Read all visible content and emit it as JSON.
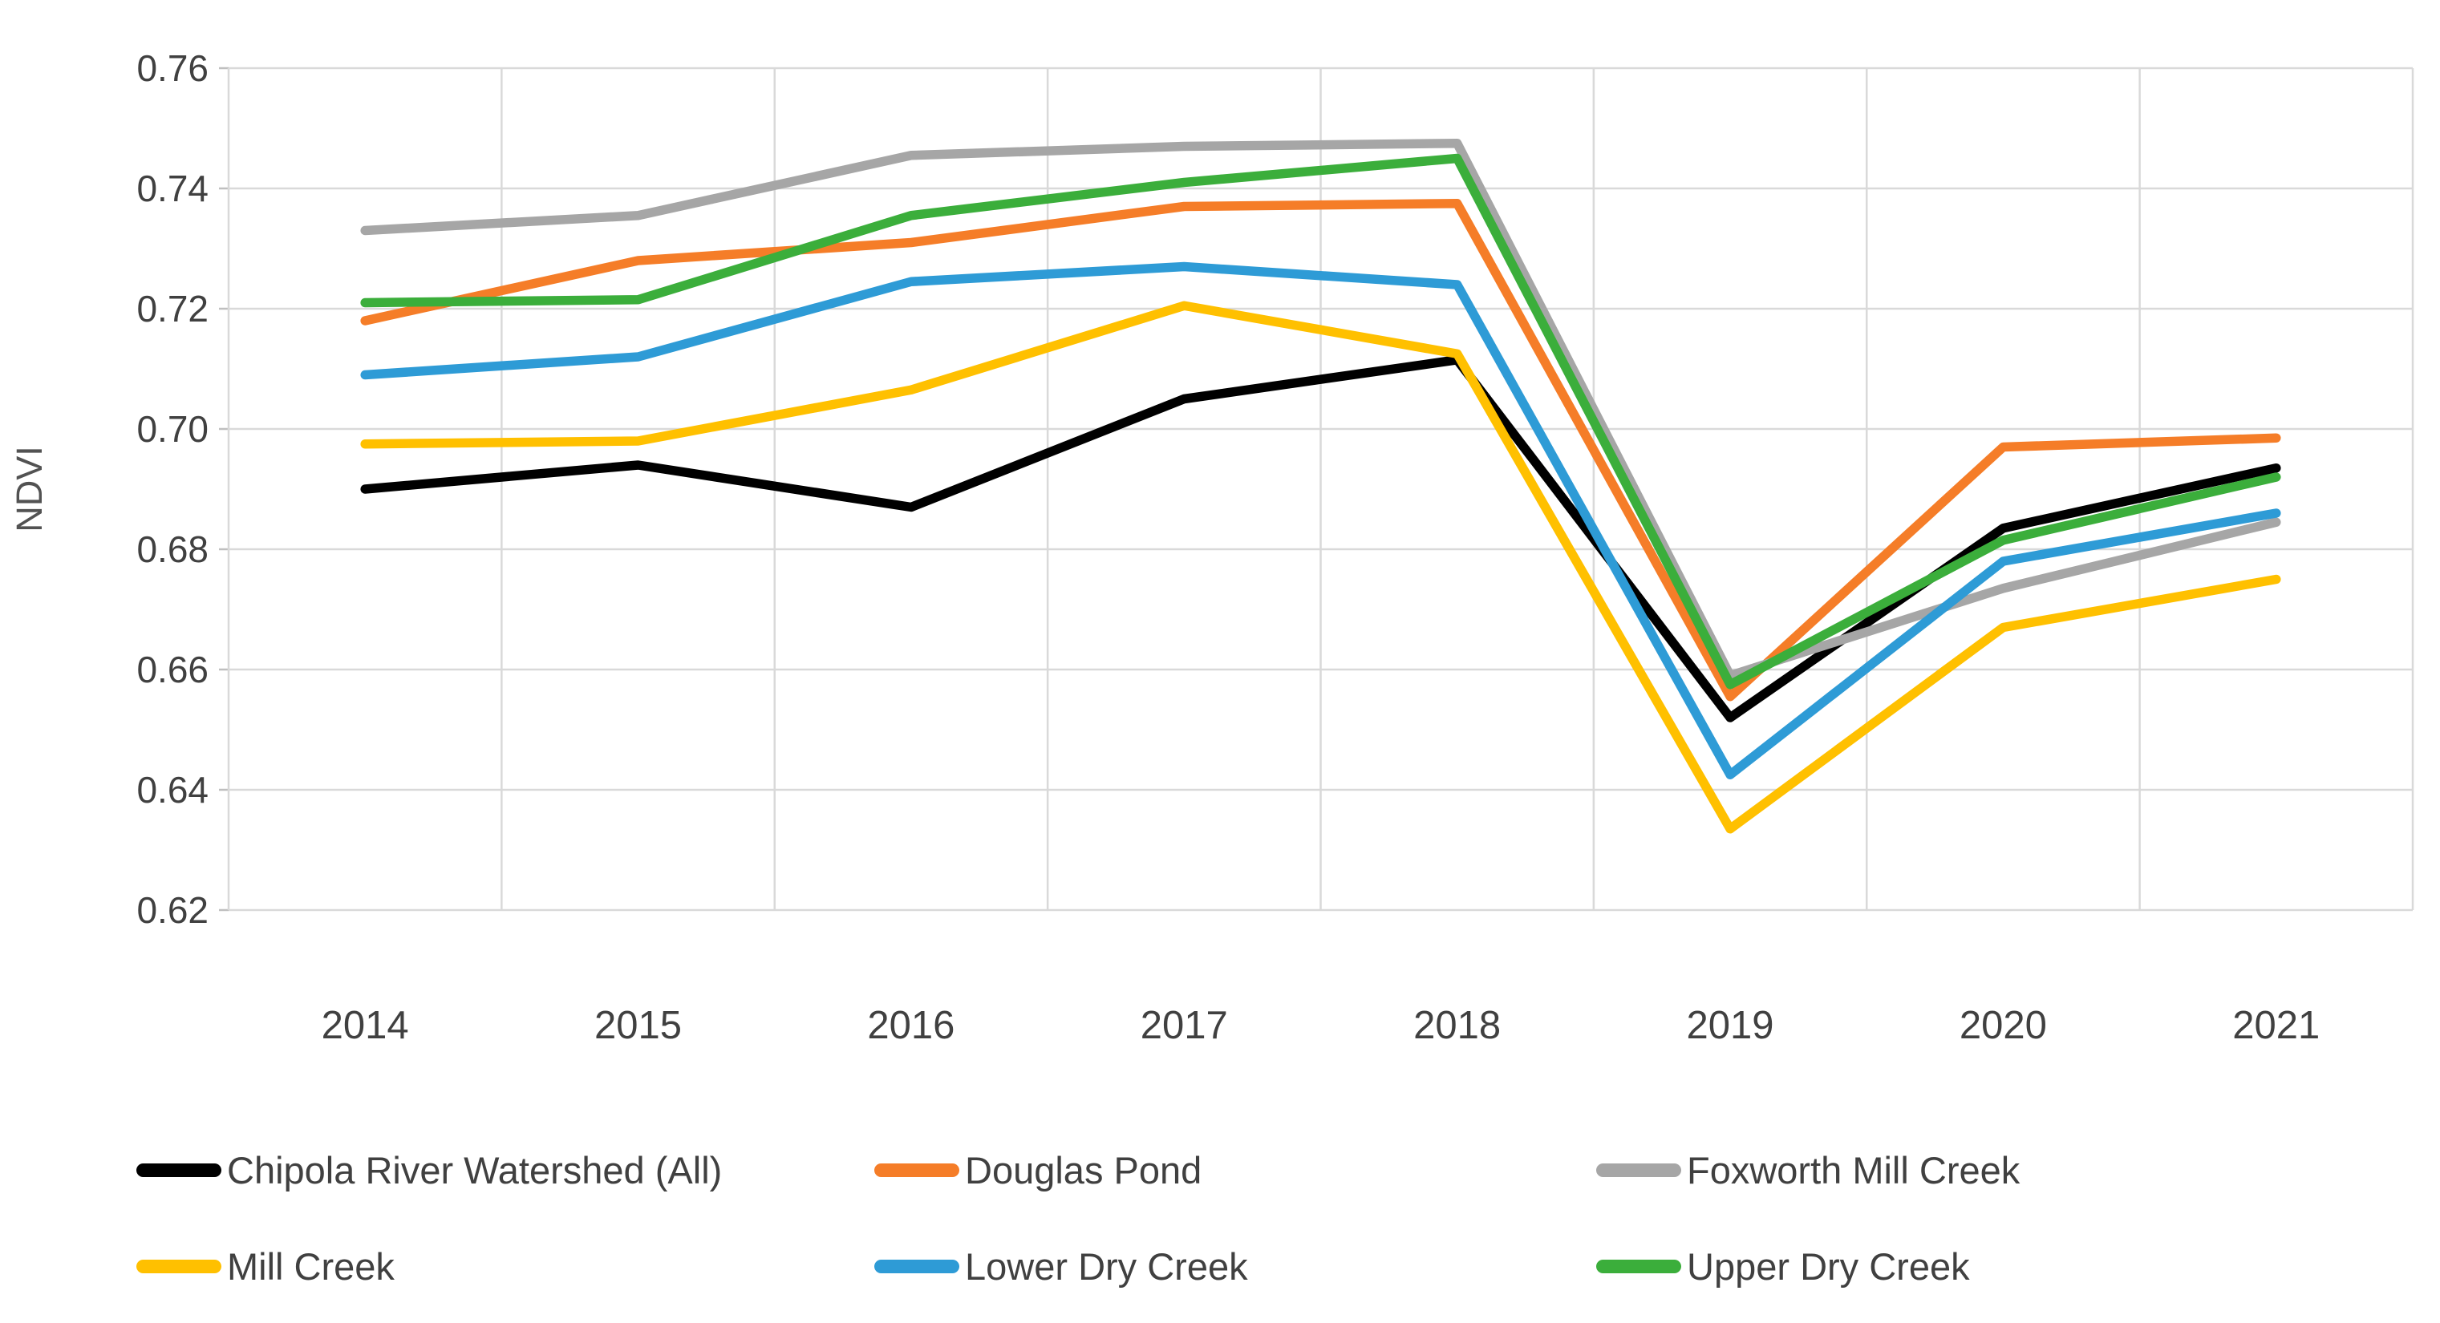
{
  "chart_data": {
    "type": "line",
    "title": "",
    "xlabel": "",
    "ylabel": "NDVI",
    "categories": [
      "2014",
      "2015",
      "2016",
      "2017",
      "2018",
      "2019",
      "2020",
      "2021"
    ],
    "ylim": [
      0.62,
      0.76
    ],
    "ytick_step": 0.02,
    "y_tick_labels": [
      "0.76",
      "0.74",
      "0.72",
      "0.70",
      "0.68",
      "0.66",
      "0.64",
      "0.62"
    ],
    "grid": "both",
    "legend_position": "bottom",
    "series": [
      {
        "name": "Chipola River Watershed (All)",
        "color": "#000000",
        "values": [
          0.69,
          0.694,
          0.687,
          0.705,
          0.7115,
          0.652,
          0.6835,
          0.6935
        ]
      },
      {
        "name": "Douglas Pond",
        "color": "#F57D28",
        "values": [
          0.718,
          0.728,
          0.731,
          0.737,
          0.7375,
          0.6555,
          0.697,
          0.6985
        ]
      },
      {
        "name": "Foxworth Mill Creek",
        "color": "#A6A6A6",
        "values": [
          0.733,
          0.7355,
          0.7455,
          0.747,
          0.7475,
          0.659,
          0.6735,
          0.6845
        ]
      },
      {
        "name": "Mill Creek",
        "color": "#FFC000",
        "values": [
          0.6975,
          0.698,
          0.7065,
          0.7205,
          0.7125,
          0.6335,
          0.667,
          0.675
        ]
      },
      {
        "name": "Lower Dry Creek",
        "color": "#2E9BD6",
        "values": [
          0.709,
          0.712,
          0.7245,
          0.727,
          0.724,
          0.6425,
          0.678,
          0.686
        ]
      },
      {
        "name": "Upper Dry Creek",
        "color": "#3BAE3B",
        "values": [
          0.721,
          0.7215,
          0.7355,
          0.741,
          0.745,
          0.6575,
          0.6815,
          0.692
        ]
      }
    ]
  },
  "colors": {
    "gridline": "#D9D9D9",
    "axis_line": "#BFBFBF",
    "tick_label": "#404040",
    "axis_title": "#525252",
    "legend_text": "#404040"
  }
}
